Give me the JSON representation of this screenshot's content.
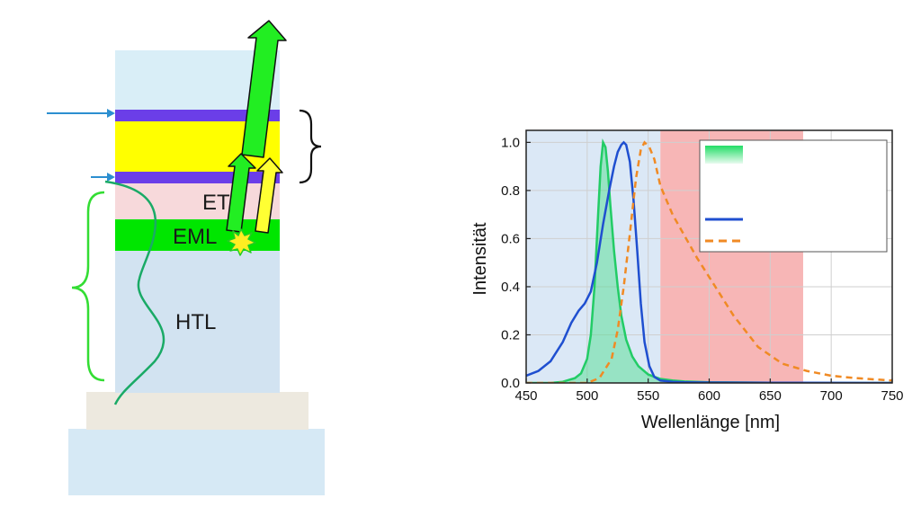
{
  "stack": {
    "layers": {
      "etl": "ETL",
      "eml": "EML",
      "htl": "HTL"
    },
    "colors": {
      "substrate": "#d6e9f5",
      "glass": "#ede9df",
      "organic": "#d2e3f1",
      "cathode_top": "#d9eef7",
      "metal": "#6b3ee8",
      "spacer": "#ffff00",
      "etl": "#f7d9db",
      "eml": "#00e600",
      "arrow_green": "#22ee22",
      "arrow_yellow": "#ffff33",
      "pointer": "#2c8fd0",
      "brace_green": "#33dd33",
      "wave": "#1aaa66"
    }
  },
  "chart_data": {
    "type": "line",
    "xlabel": "Wellenlänge [nm]",
    "ylabel": "Intensität",
    "xlim": [
      450,
      750
    ],
    "ylim": [
      0,
      1.05
    ],
    "xticks": [
      "450",
      "500",
      "550",
      "600",
      "650",
      "700",
      "750"
    ],
    "yticks": [
      "0.0",
      "0.2",
      "0.4",
      "0.6",
      "0.8",
      "1.0"
    ],
    "grid": true,
    "legend_position": "top-right",
    "bands": [
      {
        "from": 450,
        "to": 560,
        "color": "#dbe8f6"
      },
      {
        "from": 560,
        "to": 677,
        "color": "#f7b6b6"
      }
    ],
    "series": [
      {
        "style": "filled-green",
        "color": "#22cc66",
        "fill": "#44dd88",
        "x": [
          450,
          470,
          480,
          490,
          495,
          500,
          503,
          506,
          509,
          511,
          513,
          515,
          517,
          519,
          522,
          525,
          528,
          532,
          537,
          542,
          550,
          560,
          570,
          580,
          600,
          650,
          700,
          750
        ],
        "y": [
          0.0,
          0.0,
          0.005,
          0.02,
          0.04,
          0.1,
          0.2,
          0.4,
          0.7,
          0.9,
          1.0,
          0.98,
          0.88,
          0.74,
          0.55,
          0.4,
          0.28,
          0.18,
          0.11,
          0.07,
          0.035,
          0.017,
          0.01,
          0.006,
          0.003,
          0.001,
          0.0,
          0.0
        ]
      },
      {
        "style": "solid-blue",
        "color": "#1f4fd0",
        "x": [
          450,
          460,
          470,
          480,
          487,
          493,
          498,
          503,
          508,
          513,
          518,
          522,
          525,
          528,
          530,
          532,
          535,
          538,
          541,
          544,
          547,
          551,
          555,
          560,
          570,
          580,
          600,
          650,
          750
        ],
        "y": [
          0.03,
          0.05,
          0.09,
          0.17,
          0.25,
          0.3,
          0.33,
          0.38,
          0.5,
          0.66,
          0.8,
          0.9,
          0.96,
          0.99,
          1.0,
          0.99,
          0.92,
          0.76,
          0.55,
          0.33,
          0.17,
          0.07,
          0.025,
          0.01,
          0.005,
          0.003,
          0.002,
          0.001,
          0.0
        ]
      },
      {
        "style": "dashed-orange",
        "color": "#f08a24",
        "x": [
          450,
          500,
          510,
          520,
          525,
          530,
          535,
          540,
          544,
          547,
          551,
          555,
          560,
          570,
          580,
          590,
          600,
          610,
          620,
          640,
          660,
          680,
          700,
          720,
          750
        ],
        "y": [
          0.0,
          0.0,
          0.02,
          0.1,
          0.22,
          0.4,
          0.62,
          0.85,
          0.97,
          1.0,
          0.98,
          0.93,
          0.82,
          0.7,
          0.61,
          0.52,
          0.44,
          0.36,
          0.28,
          0.15,
          0.08,
          0.05,
          0.03,
          0.02,
          0.01
        ]
      }
    ]
  }
}
